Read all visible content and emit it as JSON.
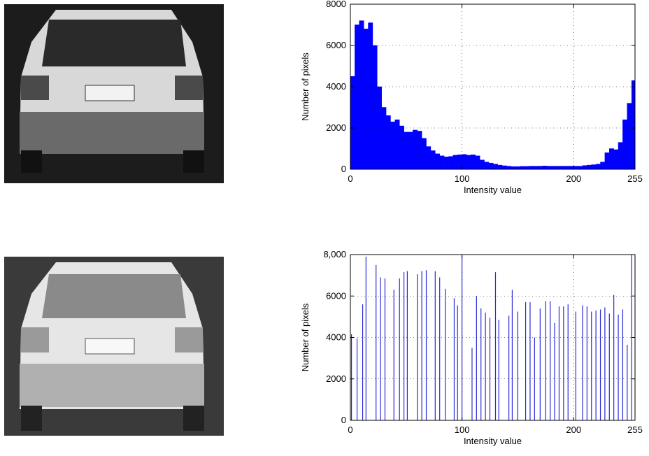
{
  "chart_data": [
    {
      "type": "histogram",
      "xlabel": "Intensity value",
      "ylabel": "Number of pixels",
      "color": "#0000ff",
      "grid": true,
      "bins": [
        0,
        4,
        8,
        12,
        16,
        20,
        24,
        28,
        32,
        36,
        40,
        44,
        48,
        52,
        56,
        60,
        64,
        68,
        72,
        76,
        80,
        84,
        88,
        92,
        96,
        100,
        104,
        108,
        112,
        116,
        120,
        124,
        128,
        132,
        136,
        140,
        144,
        148,
        152,
        156,
        160,
        164,
        168,
        172,
        176,
        180,
        184,
        188,
        192,
        196,
        200,
        204,
        208,
        212,
        216,
        220,
        224,
        228,
        232,
        236,
        240,
        244,
        248,
        252,
        255
      ],
      "counts": [
        4500,
        7000,
        7200,
        6800,
        7100,
        6000,
        4000,
        3000,
        2600,
        2300,
        2400,
        2100,
        1800,
        1800,
        1900,
        1850,
        1500,
        1100,
        900,
        750,
        650,
        600,
        620,
        680,
        700,
        720,
        680,
        700,
        650,
        450,
        350,
        300,
        250,
        200,
        170,
        150,
        130,
        130,
        140,
        140,
        150,
        150,
        150,
        160,
        150,
        150,
        150,
        150,
        150,
        150,
        150,
        150,
        180,
        200,
        220,
        250,
        350,
        800,
        1000,
        950,
        1300,
        2400,
        3200,
        4300
      ],
      "xlim": [
        0,
        255
      ],
      "xticks": [
        0,
        100,
        200,
        255
      ],
      "ylim": [
        0,
        8000
      ],
      "yticks": [
        0,
        2000,
        4000,
        6000,
        8000
      ]
    },
    {
      "type": "stem",
      "xlabel": "Intensity value",
      "ylabel": "Number of pixels",
      "color": "#2a2ad8",
      "grid": true,
      "x": [
        1,
        6,
        11,
        14,
        23,
        27,
        31,
        39,
        44,
        48,
        51,
        60,
        64,
        68,
        76,
        80,
        85,
        93,
        96,
        100,
        109,
        113,
        117,
        121,
        125,
        130,
        133,
        142,
        145,
        150,
        157,
        161,
        165,
        170,
        175,
        179,
        183,
        187,
        191,
        195,
        202,
        208,
        212,
        216,
        220,
        224,
        228,
        232,
        236,
        240,
        244,
        248,
        252
      ],
      "values": [
        4150,
        3950,
        5600,
        7900,
        7500,
        6900,
        6850,
        6300,
        6850,
        7150,
        7200,
        7050,
        7200,
        7250,
        7200,
        6900,
        6350,
        5900,
        5550,
        7950,
        3500,
        6000,
        5400,
        5200,
        4950,
        7150,
        4850,
        5050,
        6300,
        5250,
        5700,
        5700,
        4000,
        5400,
        5750,
        5750,
        4700,
        5500,
        5500,
        5600,
        5250,
        5550,
        5500,
        5250,
        5300,
        5350,
        5450,
        5150,
        6050,
        5100,
        5350,
        3650,
        8000
      ],
      "xlim": [
        0,
        255
      ],
      "xticks": [
        0,
        100,
        200,
        255
      ],
      "ylim": [
        0,
        8000
      ],
      "yticks": [
        0,
        2000,
        4000,
        6000,
        {
          "value": 8000,
          "label": "8,000"
        }
      ]
    }
  ]
}
